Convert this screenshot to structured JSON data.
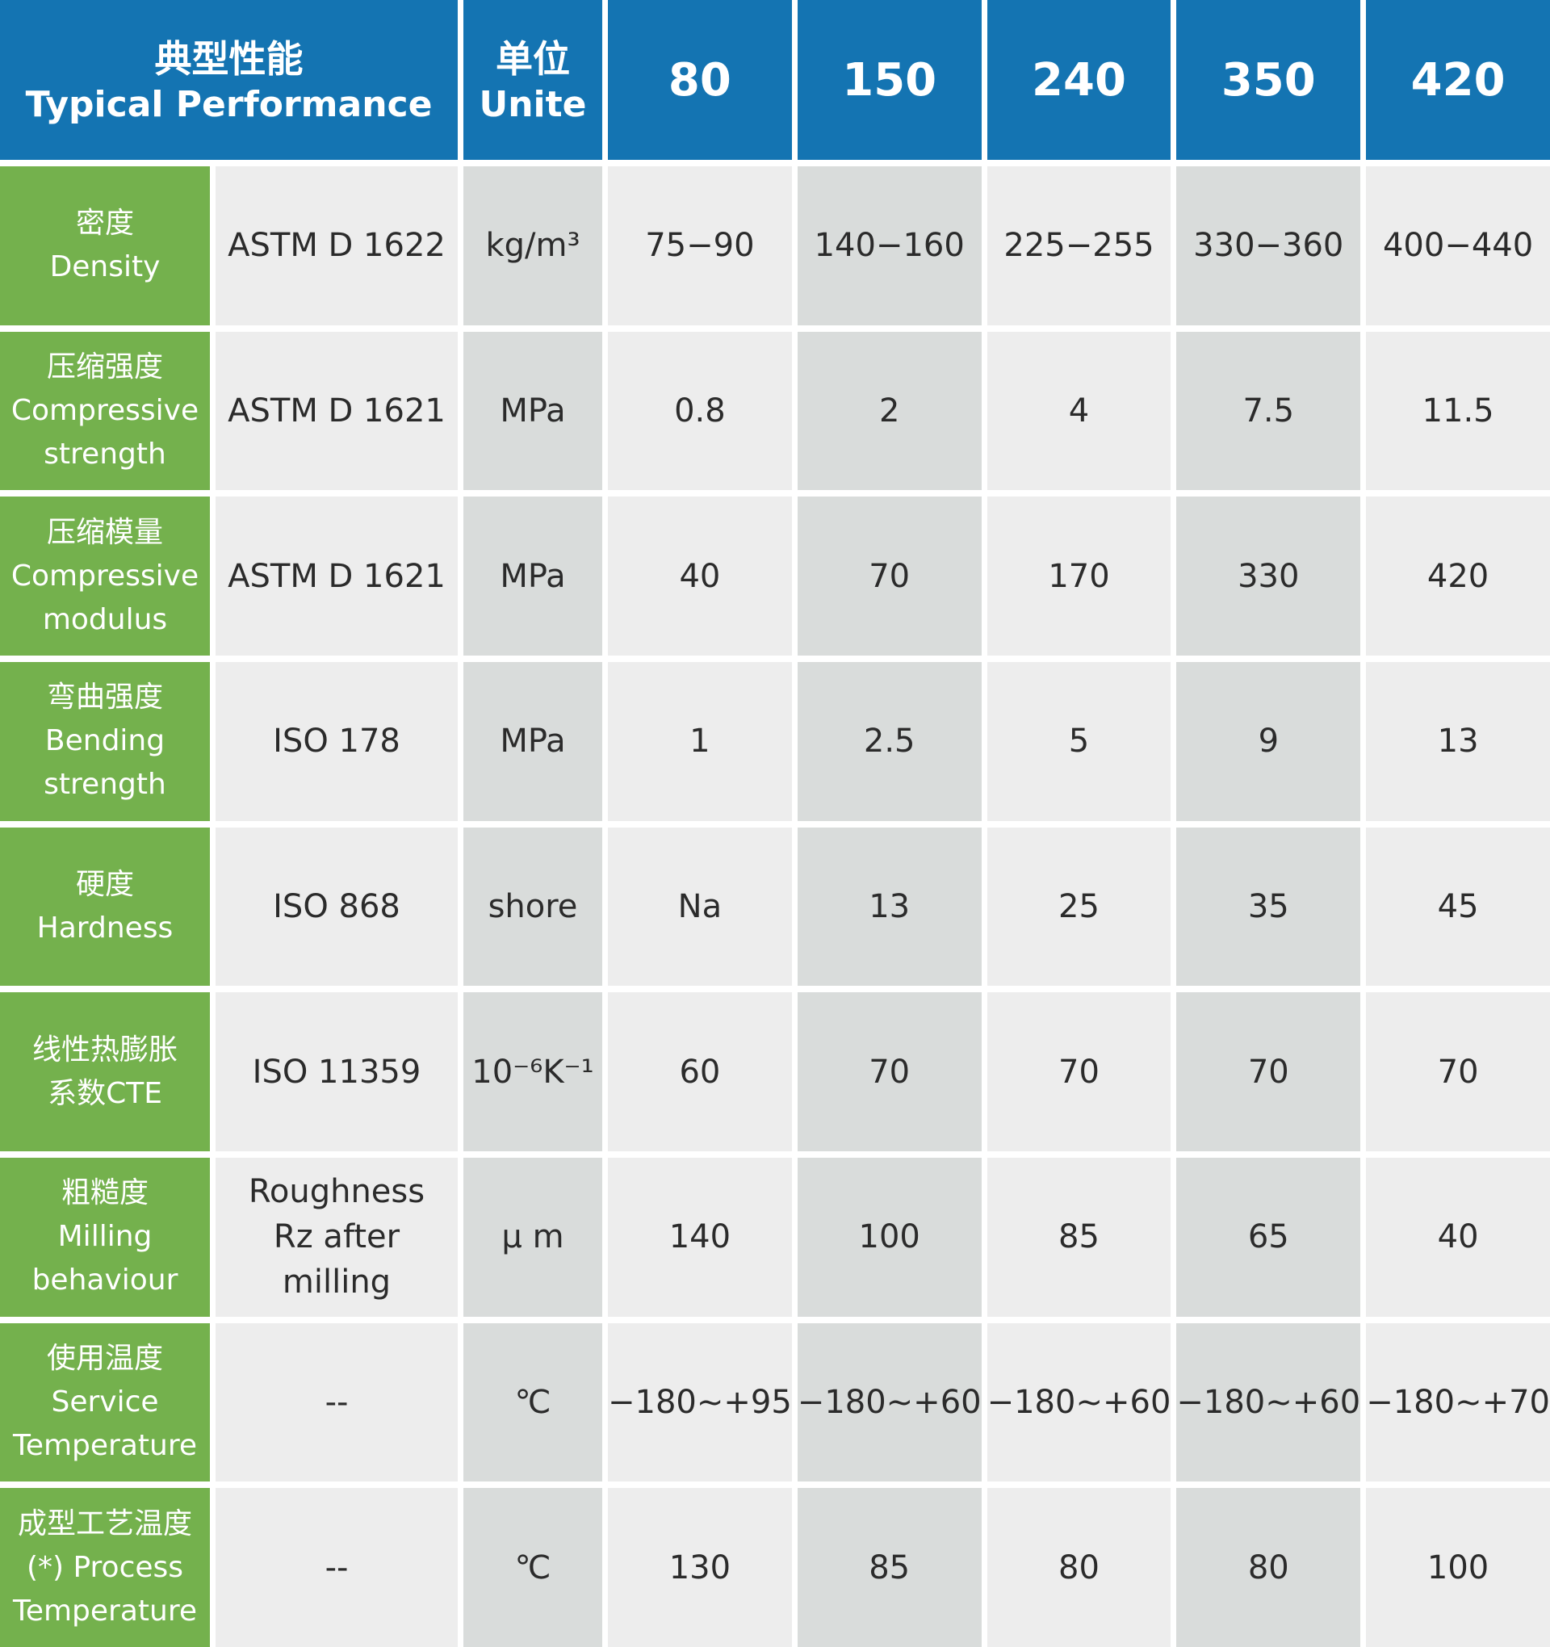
{
  "colors": {
    "header_blue": "#1474b2",
    "label_green": "#74b14d",
    "cell_light": "#ededed",
    "cell_dark": "#d9dcdb",
    "text_dark": "#2b2b2b",
    "text_white": "#ffffff"
  },
  "header": {
    "performance_zh": "典型性能",
    "performance_en": "Typical Performance",
    "unit_zh": "单位",
    "unit_en": "Unite",
    "grades": [
      "80",
      "150",
      "240",
      "350",
      "420"
    ]
  },
  "rows": [
    {
      "label_zh": "密度",
      "label_en": "Density",
      "method": "ASTM D 1622",
      "unit": "kg/m³",
      "values": [
        "75−90",
        "140−160",
        "225−255",
        "330−360",
        "400−440"
      ]
    },
    {
      "label_zh": "压缩强度",
      "label_en": "Compressive strength",
      "method": "ASTM D 1621",
      "unit": "MPa",
      "values": [
        "0.8",
        "2",
        "4",
        "7.5",
        "11.5"
      ]
    },
    {
      "label_zh": "压缩模量",
      "label_en": "Compressive modulus",
      "method": "ASTM D 1621",
      "unit": "MPa",
      "values": [
        "40",
        "70",
        "170",
        "330",
        "420"
      ]
    },
    {
      "label_zh": "弯曲强度",
      "label_en": "Bending strength",
      "method": "ISO 178",
      "unit": "MPa",
      "values": [
        "1",
        "2.5",
        "5",
        "9",
        "13"
      ]
    },
    {
      "label_zh": "硬度",
      "label_en": "Hardness",
      "method": "ISO 868",
      "unit": "shore",
      "values": [
        "Na",
        "13",
        "25",
        "35",
        "45"
      ]
    },
    {
      "label_zh": "线性热膨胀",
      "label_en": "系数CTE",
      "method": "ISO 11359",
      "unit": "10⁻⁶K⁻¹",
      "values": [
        "60",
        "70",
        "70",
        "70",
        "70"
      ]
    },
    {
      "label_zh": "粗糙度",
      "label_en": "Milling behaviour",
      "method": "Roughness Rz after milling",
      "unit": "μ m",
      "values": [
        "140",
        "100",
        "85",
        "65",
        "40"
      ]
    },
    {
      "label_zh": "使用温度",
      "label_en": "Service Temperature",
      "method": "--",
      "unit": "℃",
      "values": [
        "−180~+95",
        "−180~+60",
        "−180~+60",
        "−180~+60",
        "−180~+70"
      ]
    },
    {
      "label_zh": "成型工艺温度",
      "label_en": "(*) Process Temperature",
      "method": "--",
      "unit": "℃",
      "values": [
        "130",
        "85",
        "80",
        "80",
        "100"
      ]
    }
  ]
}
